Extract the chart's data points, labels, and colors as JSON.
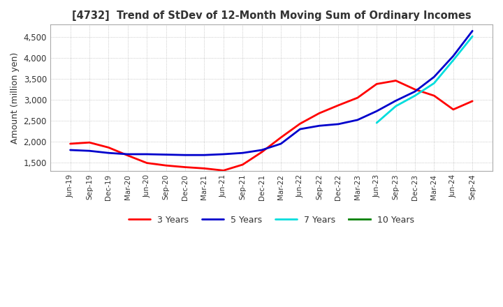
{
  "title": "[4732]  Trend of StDev of 12-Month Moving Sum of Ordinary Incomes",
  "ylabel": "Amount (million yen)",
  "background_color": "#ffffff",
  "plot_background": "#ffffff",
  "grid_color": "#aaaaaa",
  "ylim": [
    1300,
    4800
  ],
  "yticks": [
    1500,
    2000,
    2500,
    3000,
    3500,
    4000,
    4500
  ],
  "x_labels": [
    "Jun-19",
    "Sep-19",
    "Dec-19",
    "Mar-20",
    "Jun-20",
    "Sep-20",
    "Dec-20",
    "Mar-21",
    "Jun-21",
    "Sep-21",
    "Dec-21",
    "Mar-22",
    "Jun-22",
    "Sep-22",
    "Dec-22",
    "Mar-23",
    "Jun-23",
    "Sep-23",
    "Dec-23",
    "Mar-24",
    "Jun-24",
    "Sep-24"
  ],
  "series": {
    "3 Years": {
      "color": "#ff0000",
      "data": [
        1950,
        1980,
        1860,
        1670,
        1490,
        1430,
        1390,
        1360,
        1310,
        1450,
        1750,
        2100,
        2430,
        2680,
        2870,
        3050,
        3380,
        3460,
        3250,
        3100,
        2770,
        2970
      ]
    },
    "5 Years": {
      "color": "#0000cc",
      "data": [
        1800,
        1780,
        1730,
        1700,
        1700,
        1690,
        1680,
        1680,
        1700,
        1730,
        1800,
        1950,
        2300,
        2380,
        2420,
        2520,
        2730,
        2980,
        3200,
        3550,
        4050,
        4650
      ]
    },
    "7 Years": {
      "color": "#00dddd",
      "data": [
        null,
        null,
        null,
        null,
        null,
        null,
        null,
        null,
        null,
        null,
        null,
        null,
        null,
        null,
        null,
        null,
        2450,
        2850,
        3100,
        3400,
        3950,
        4520
      ]
    },
    "10 Years": {
      "color": "#008000",
      "data": [
        null,
        null,
        null,
        null,
        null,
        null,
        null,
        null,
        null,
        null,
        null,
        null,
        null,
        null,
        null,
        null,
        null,
        null,
        null,
        null,
        null,
        null
      ]
    }
  }
}
